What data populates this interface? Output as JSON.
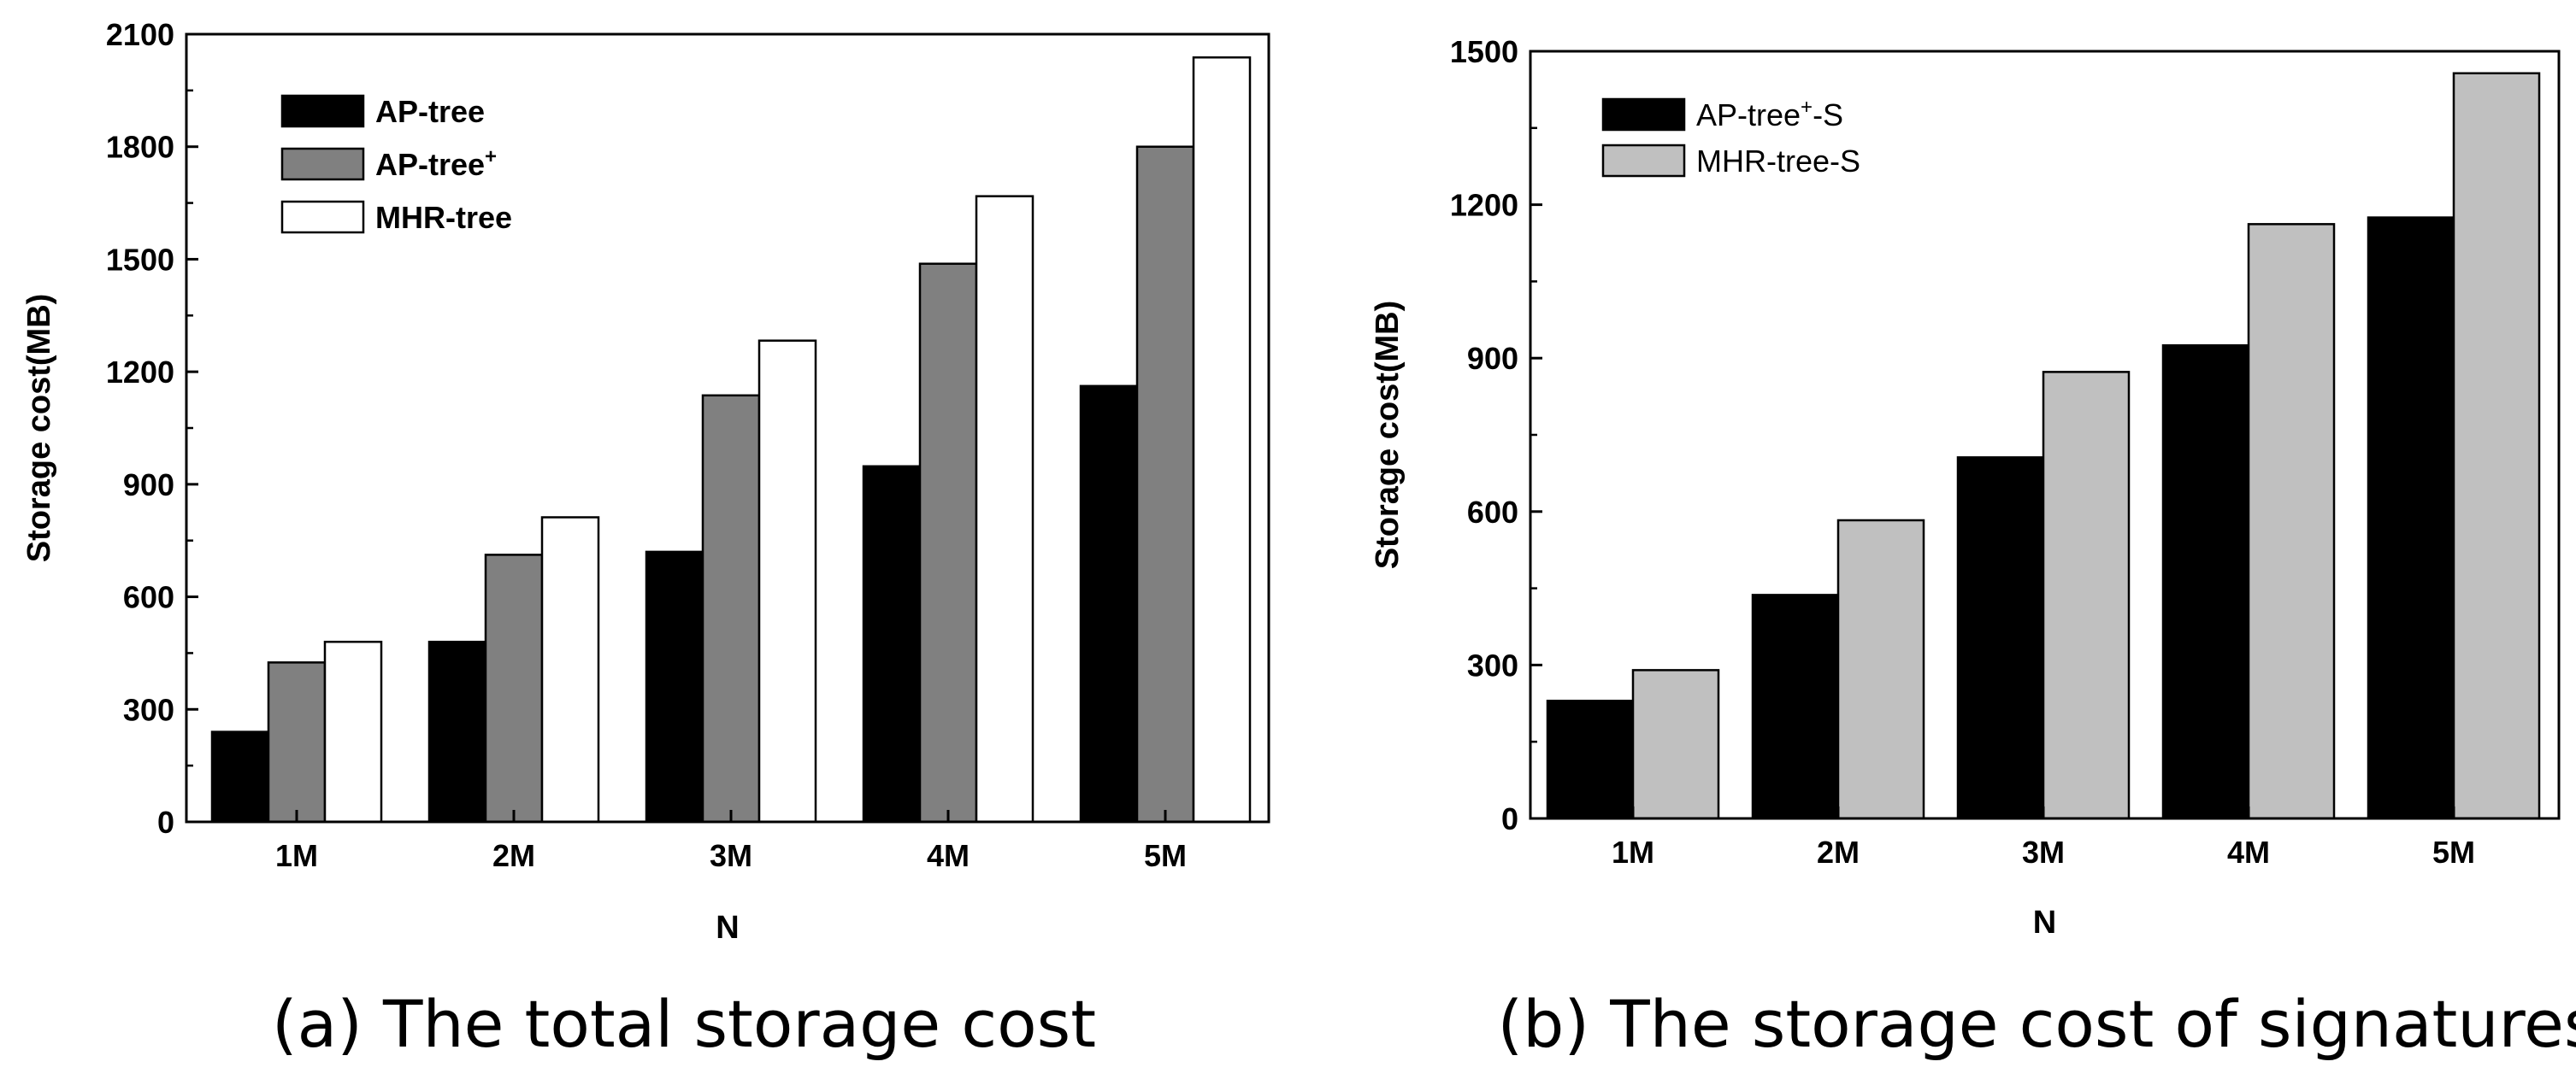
{
  "chart_data": [
    {
      "type": "bar",
      "caption": "(a) The total storage cost",
      "xlabel": "N",
      "ylabel": "Storage cost(MB)",
      "categories": [
        "1M",
        "2M",
        "3M",
        "4M",
        "5M"
      ],
      "ylim": [
        0,
        2100
      ],
      "yticks": [
        0,
        300,
        600,
        900,
        1200,
        1500,
        1800,
        2100
      ],
      "legend_position": "top-left",
      "series": [
        {
          "name": "AP-tree",
          "sup": "",
          "color": "#000000",
          "values": [
            240,
            480,
            720,
            948,
            1162
          ]
        },
        {
          "name": "AP-tree",
          "sup": "+",
          "color": "#808080",
          "values": [
            425,
            712,
            1137,
            1488,
            1800
          ]
        },
        {
          "name": "MHR-tree",
          "sup": "",
          "color": "#ffffff",
          "values": [
            480,
            812,
            1283,
            1668,
            2038
          ]
        }
      ]
    },
    {
      "type": "bar",
      "caption": "(b) The storage cost of signatures",
      "xlabel": "N",
      "ylabel": "Storage cost(MB)",
      "categories": [
        "1M",
        "2M",
        "3M",
        "4M",
        "5M"
      ],
      "ylim": [
        0,
        1500
      ],
      "yticks": [
        0,
        300,
        600,
        900,
        1200,
        1500
      ],
      "legend_position": "top-left",
      "series": [
        {
          "name": "AP-tree",
          "sup": "+",
          "suffix": "-S",
          "color": "#000000",
          "values": [
            230,
            437,
            706,
            925,
            1175
          ]
        },
        {
          "name": "MHR-tree-S",
          "sup": "",
          "suffix": "",
          "color": "#c0c0c0",
          "values": [
            290,
            583,
            873,
            1162,
            1457
          ]
        }
      ]
    }
  ]
}
